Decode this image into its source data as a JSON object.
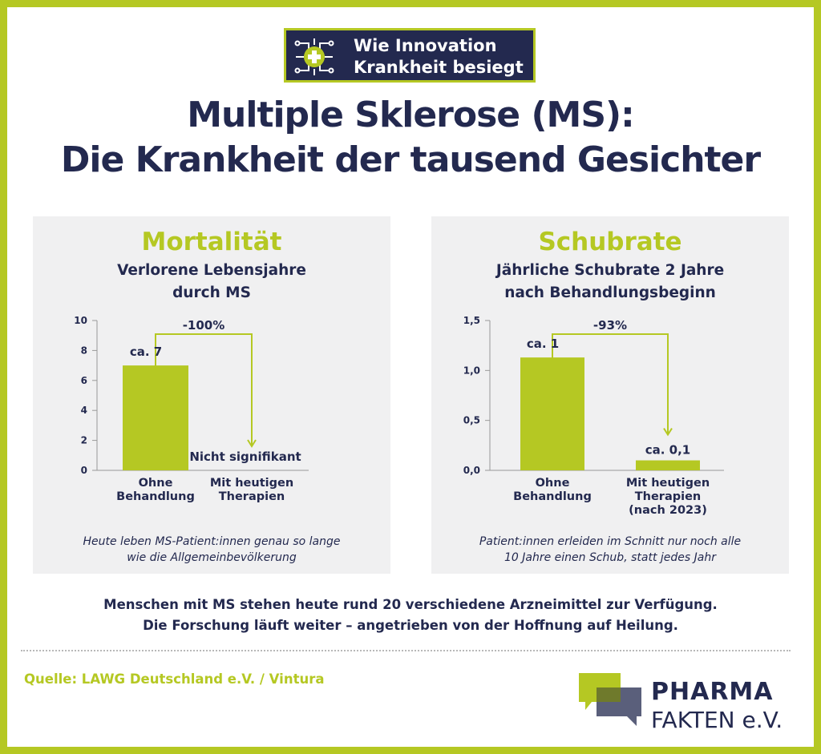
{
  "badge": {
    "line1": "Wie Innovation",
    "line2": "Krankheit besiegt"
  },
  "title": {
    "line1": "Multiple Sklerose (MS):",
    "line2": "Die Krankheit der tausend Gesichter"
  },
  "colors": {
    "accent": "#b5c823",
    "navy": "#23294f",
    "panel_bg": "#f0f0f1"
  },
  "icons": {
    "badge": "circuit-medical-cross-icon",
    "logo": "speech-bubbles-icon"
  },
  "chart_data": [
    {
      "type": "bar",
      "title": "Mortalität",
      "subtitle": [
        "Verlorene Lebensjahre",
        "durch MS"
      ],
      "categories": [
        [
          "Ohne",
          "Behandlung"
        ],
        [
          "Mit heutigen",
          "Therapien"
        ]
      ],
      "values": [
        7,
        0
      ],
      "value_labels": [
        "ca. 7",
        "Nicht signifikant"
      ],
      "ylim": [
        0,
        10
      ],
      "yticks": [
        0,
        2,
        4,
        6,
        8,
        10
      ],
      "ytick_labels": [
        "0",
        "2",
        "4",
        "6",
        "8",
        "10"
      ],
      "change_label": "-100%",
      "note": [
        "Heute leben MS-Patient:innen genau so lange",
        "wie die Allgemeinbevölkerung"
      ]
    },
    {
      "type": "bar",
      "title": "Schubrate",
      "subtitle": [
        "Jährliche Schubrate 2 Jahre",
        "nach Behandlungsbeginn"
      ],
      "categories": [
        [
          "Ohne",
          "Behandlung"
        ],
        [
          "Mit heutigen",
          "Therapien",
          "(nach 2023)"
        ]
      ],
      "values": [
        1.13,
        0.1
      ],
      "value_labels": [
        "ca. 1",
        "ca. 0,1"
      ],
      "ylim": [
        0,
        1.5
      ],
      "yticks": [
        0,
        0.5,
        1.0,
        1.5
      ],
      "ytick_labels": [
        "0,0",
        "0,5",
        "1,0",
        "1,5"
      ],
      "change_label": "-93%",
      "note": [
        "Patient:innen erleiden im Schnitt nur noch alle",
        "10 Jahre einen Schub, statt jedes Jahr"
      ]
    }
  ],
  "footer": {
    "line1": "Menschen mit MS stehen heute rund 20 verschiedene Arzneimittel zur Verfügung.",
    "line2": "Die Forschung läuft weiter – angetrieben von der Hoffnung auf Heilung.",
    "source": "Quelle: LAWG Deutschland e.V. / Vintura"
  },
  "logo": {
    "top": "PHARMA",
    "bottom": "FAKTEN e.V."
  }
}
